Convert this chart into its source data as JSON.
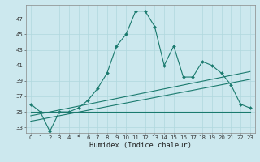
{
  "x": [
    0,
    1,
    2,
    3,
    4,
    5,
    6,
    7,
    8,
    9,
    10,
    11,
    12,
    13,
    14,
    15,
    16,
    17,
    18,
    19,
    20,
    21,
    22,
    23
  ],
  "line1": [
    36,
    35,
    32.5,
    35,
    35,
    35.5,
    36.5,
    38,
    40,
    43.5,
    45,
    48,
    48,
    46,
    41,
    43.5,
    39.5,
    39.5,
    41.5,
    41,
    40,
    38.5,
    36,
    35.5
  ],
  "line2": [
    35,
    35,
    35,
    35,
    35,
    35,
    35,
    35,
    35,
    35,
    35,
    35,
    35,
    35,
    35,
    35,
    35,
    35,
    35,
    35,
    35,
    35,
    35,
    35
  ],
  "line3_x": [
    0,
    23
  ],
  "line3_y": [
    33.8,
    39.2
  ],
  "line4_x": [
    0,
    23
  ],
  "line4_y": [
    34.5,
    40.2
  ],
  "bg_color": "#cce8ee",
  "line_color": "#1a7a6e",
  "grid_color": "#b0d8de",
  "ylabel_values": [
    33,
    35,
    37,
    39,
    41,
    43,
    45,
    47
  ],
  "xlabel": "Humidex (Indice chaleur)",
  "ylim": [
    32.3,
    48.8
  ],
  "xlim": [
    -0.5,
    23.5
  ],
  "tick_fontsize": 5.0,
  "xlabel_fontsize": 6.2
}
